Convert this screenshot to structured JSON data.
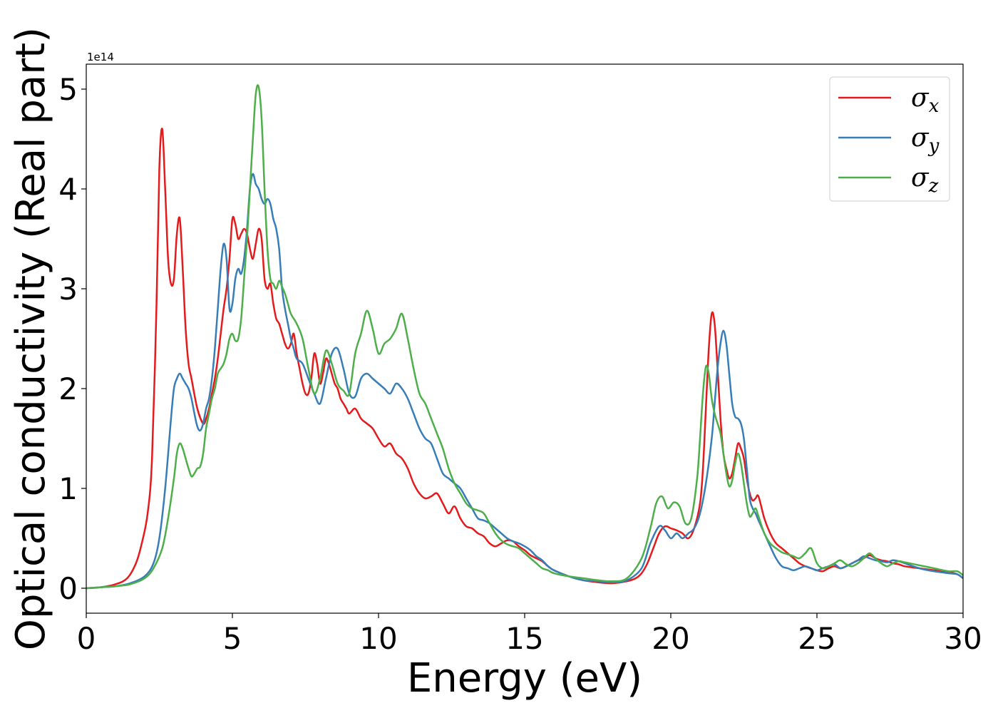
{
  "chart_data": {
    "type": "line",
    "title": "",
    "xlabel": "Energy (eV)",
    "ylabel": "Optical conductivity (Real part)",
    "y_offset_label": "1e14",
    "xlim": [
      0,
      30
    ],
    "ylim": [
      -0.25,
      5.25
    ],
    "x_ticks": [
      0,
      5,
      10,
      15,
      20,
      25,
      30
    ],
    "x_tick_labels": [
      "0",
      "5",
      "10",
      "15",
      "20",
      "25",
      "30"
    ],
    "y_ticks": [
      0,
      1,
      2,
      3,
      4,
      5
    ],
    "y_tick_labels": [
      "0",
      "1",
      "2",
      "3",
      "4",
      "5"
    ],
    "grid": false,
    "legend_position": "top-right",
    "series": [
      {
        "name": "σx",
        "symbol": "σ",
        "subscript": "x",
        "color": "#e41a1c",
        "x": [
          0,
          0.5,
          1,
          1.4,
          1.7,
          1.9,
          2.1,
          2.25,
          2.4,
          2.5,
          2.6,
          2.7,
          2.8,
          2.9,
          3.0,
          3.1,
          3.2,
          3.3,
          3.4,
          3.5,
          3.6,
          3.8,
          4.0,
          4.1,
          4.2,
          4.3,
          4.4,
          4.5,
          4.6,
          4.7,
          4.8,
          4.9,
          5.0,
          5.1,
          5.2,
          5.3,
          5.4,
          5.5,
          5.6,
          5.7,
          5.8,
          5.9,
          6.0,
          6.1,
          6.2,
          6.3,
          6.4,
          6.5,
          6.6,
          6.7,
          6.8,
          6.9,
          7.0,
          7.1,
          7.2,
          7.3,
          7.4,
          7.5,
          7.6,
          7.7,
          7.8,
          7.9,
          8.0,
          8.1,
          8.2,
          8.3,
          8.4,
          8.5,
          8.6,
          8.7,
          8.8,
          8.9,
          9.0,
          9.2,
          9.4,
          9.6,
          9.8,
          10.0,
          10.2,
          10.4,
          10.6,
          10.8,
          11.0,
          11.2,
          11.4,
          11.6,
          11.8,
          12.0,
          12.2,
          12.4,
          12.6,
          12.8,
          13.0,
          13.2,
          13.4,
          13.6,
          13.8,
          14.0,
          14.2,
          14.4,
          14.6,
          14.8,
          15.0,
          15.2,
          15.4,
          15.6,
          15.8,
          16.0,
          16.5,
          17.0,
          17.5,
          18.0,
          18.5,
          18.8,
          19.0,
          19.2,
          19.4,
          19.6,
          19.8,
          20.0,
          20.2,
          20.4,
          20.6,
          20.8,
          21.0,
          21.1,
          21.2,
          21.3,
          21.4,
          21.5,
          21.6,
          21.7,
          21.8,
          21.9,
          22.0,
          22.1,
          22.2,
          22.3,
          22.4,
          22.5,
          22.6,
          22.7,
          22.8,
          22.9,
          23.0,
          23.2,
          23.4,
          23.6,
          23.8,
          24.0,
          24.2,
          24.4,
          24.6,
          24.8,
          25.0,
          25.2,
          25.4,
          25.6,
          25.8,
          26.0,
          26.2,
          26.4,
          26.6,
          26.8,
          27.0,
          27.2,
          27.4,
          27.6,
          27.8,
          28.0,
          28.5,
          29.0,
          29.5,
          29.8,
          30
        ],
        "y": [
          0,
          0.01,
          0.04,
          0.1,
          0.25,
          0.45,
          0.75,
          1.3,
          2.8,
          4.2,
          4.6,
          4.0,
          3.3,
          3.05,
          3.1,
          3.55,
          3.7,
          3.2,
          2.6,
          2.25,
          2.1,
          1.8,
          1.65,
          1.7,
          1.8,
          1.95,
          2.1,
          2.3,
          2.55,
          2.8,
          3.0,
          3.3,
          3.7,
          3.65,
          3.5,
          3.55,
          3.6,
          3.55,
          3.4,
          3.3,
          3.45,
          3.6,
          3.5,
          3.1,
          3.0,
          3.05,
          2.85,
          2.7,
          2.65,
          2.55,
          2.45,
          2.4,
          2.45,
          2.55,
          2.35,
          2.2,
          2.05,
          1.95,
          1.95,
          2.1,
          2.35,
          2.25,
          2.05,
          2.15,
          2.3,
          2.25,
          2.15,
          2.05,
          2.0,
          1.9,
          1.85,
          1.8,
          1.75,
          1.8,
          1.7,
          1.65,
          1.6,
          1.5,
          1.42,
          1.45,
          1.35,
          1.3,
          1.2,
          1.05,
          0.95,
          0.9,
          0.92,
          0.95,
          0.85,
          0.75,
          0.82,
          0.7,
          0.62,
          0.6,
          0.55,
          0.52,
          0.45,
          0.42,
          0.45,
          0.48,
          0.47,
          0.42,
          0.38,
          0.33,
          0.3,
          0.27,
          0.22,
          0.18,
          0.12,
          0.08,
          0.06,
          0.05,
          0.07,
          0.1,
          0.15,
          0.25,
          0.4,
          0.55,
          0.62,
          0.6,
          0.58,
          0.55,
          0.5,
          0.6,
          0.85,
          1.2,
          1.8,
          2.4,
          2.75,
          2.65,
          2.2,
          1.7,
          1.35,
          1.2,
          1.1,
          1.15,
          1.3,
          1.45,
          1.4,
          1.3,
          1.1,
          0.95,
          0.88,
          0.9,
          0.92,
          0.7,
          0.55,
          0.45,
          0.4,
          0.35,
          0.3,
          0.25,
          0.22,
          0.2,
          0.18,
          0.17,
          0.2,
          0.22,
          0.2,
          0.22,
          0.25,
          0.28,
          0.3,
          0.33,
          0.3,
          0.28,
          0.27,
          0.25,
          0.24,
          0.22,
          0.2,
          0.18,
          0.16,
          0.14,
          0.1
        ]
      },
      {
        "name": "σy",
        "symbol": "σ",
        "subscript": "y",
        "color": "#377eb8",
        "x": [
          0,
          0.5,
          1,
          1.5,
          2.0,
          2.3,
          2.5,
          2.7,
          2.9,
          3.0,
          3.1,
          3.2,
          3.3,
          3.4,
          3.5,
          3.6,
          3.7,
          3.8,
          3.9,
          4.0,
          4.1,
          4.2,
          4.3,
          4.4,
          4.5,
          4.6,
          4.7,
          4.8,
          4.9,
          5.0,
          5.1,
          5.2,
          5.3,
          5.4,
          5.5,
          5.6,
          5.7,
          5.8,
          5.9,
          6.0,
          6.1,
          6.2,
          6.3,
          6.4,
          6.5,
          6.6,
          6.7,
          6.8,
          6.9,
          7.0,
          7.1,
          7.2,
          7.4,
          7.6,
          7.8,
          8.0,
          8.2,
          8.4,
          8.6,
          8.8,
          9.0,
          9.2,
          9.4,
          9.6,
          9.8,
          10.0,
          10.2,
          10.4,
          10.6,
          10.8,
          11.0,
          11.2,
          11.4,
          11.6,
          11.8,
          12.0,
          12.2,
          12.4,
          12.6,
          12.8,
          13.0,
          13.2,
          13.4,
          13.6,
          13.8,
          14.0,
          14.2,
          14.4,
          14.6,
          14.8,
          15.0,
          15.2,
          15.4,
          15.6,
          15.8,
          16.0,
          16.5,
          17.0,
          17.5,
          18.0,
          18.5,
          19.0,
          19.3,
          19.6,
          19.8,
          20.0,
          20.2,
          20.4,
          20.6,
          20.8,
          21.0,
          21.2,
          21.4,
          21.5,
          21.6,
          21.7,
          21.8,
          21.9,
          22.0,
          22.1,
          22.2,
          22.3,
          22.4,
          22.5,
          22.6,
          22.7,
          22.8,
          22.9,
          23.0,
          23.2,
          23.4,
          23.6,
          23.8,
          24.0,
          24.2,
          24.4,
          24.6,
          24.8,
          25.0,
          25.2,
          25.4,
          25.6,
          25.8,
          26.0,
          26.2,
          26.4,
          26.6,
          26.8,
          27.0,
          27.2,
          27.4,
          27.6,
          27.8,
          28.0,
          28.5,
          29.0,
          29.5,
          29.8,
          30
        ],
        "y": [
          0,
          0.01,
          0.02,
          0.05,
          0.12,
          0.25,
          0.5,
          1.0,
          1.7,
          2.0,
          2.1,
          2.15,
          2.1,
          2.05,
          2.0,
          1.9,
          1.75,
          1.62,
          1.58,
          1.65,
          1.8,
          1.9,
          2.1,
          2.4,
          2.8,
          3.2,
          3.45,
          3.3,
          2.8,
          2.85,
          3.1,
          3.2,
          3.15,
          3.3,
          3.6,
          4.0,
          4.15,
          4.05,
          4.0,
          3.9,
          3.85,
          3.9,
          3.85,
          3.7,
          3.6,
          3.4,
          3.0,
          2.8,
          2.65,
          2.5,
          2.4,
          2.3,
          2.25,
          2.1,
          1.95,
          1.85,
          2.1,
          2.35,
          2.4,
          2.2,
          1.95,
          1.92,
          2.1,
          2.15,
          2.1,
          2.05,
          2.0,
          1.95,
          2.05,
          2.0,
          1.9,
          1.75,
          1.6,
          1.5,
          1.45,
          1.3,
          1.15,
          1.1,
          1.05,
          1.0,
          0.9,
          0.8,
          0.7,
          0.68,
          0.65,
          0.6,
          0.55,
          0.5,
          0.47,
          0.45,
          0.42,
          0.38,
          0.32,
          0.28,
          0.22,
          0.18,
          0.12,
          0.08,
          0.07,
          0.06,
          0.08,
          0.2,
          0.45,
          0.62,
          0.58,
          0.5,
          0.55,
          0.5,
          0.55,
          0.6,
          0.75,
          1.05,
          1.5,
          1.85,
          2.2,
          2.45,
          2.58,
          2.45,
          2.15,
          1.85,
          1.72,
          1.7,
          1.65,
          1.5,
          1.2,
          0.9,
          0.8,
          0.75,
          0.68,
          0.55,
          0.42,
          0.3,
          0.22,
          0.2,
          0.18,
          0.2,
          0.22,
          0.2,
          0.18,
          0.2,
          0.22,
          0.24,
          0.2,
          0.22,
          0.25,
          0.28,
          0.32,
          0.3,
          0.28,
          0.27,
          0.26,
          0.28,
          0.27,
          0.25,
          0.2,
          0.17,
          0.15,
          0.14,
          0.1
        ]
      },
      {
        "name": "σz",
        "symbol": "σ",
        "subscript": "z",
        "color": "#4daf4a",
        "x": [
          0,
          0.5,
          1,
          1.5,
          2.0,
          2.3,
          2.6,
          2.8,
          3.0,
          3.1,
          3.2,
          3.3,
          3.4,
          3.5,
          3.6,
          3.7,
          3.8,
          3.9,
          4.0,
          4.1,
          4.2,
          4.3,
          4.4,
          4.5,
          4.6,
          4.7,
          4.8,
          4.9,
          5.0,
          5.1,
          5.2,
          5.3,
          5.4,
          5.5,
          5.6,
          5.7,
          5.8,
          5.9,
          6.0,
          6.1,
          6.2,
          6.3,
          6.4,
          6.5,
          6.6,
          6.7,
          6.8,
          6.9,
          7.0,
          7.2,
          7.4,
          7.6,
          7.8,
          8.0,
          8.2,
          8.4,
          8.6,
          8.8,
          9.0,
          9.2,
          9.4,
          9.6,
          9.8,
          10.0,
          10.2,
          10.4,
          10.6,
          10.8,
          11.0,
          11.2,
          11.4,
          11.6,
          11.8,
          12.0,
          12.2,
          12.4,
          12.6,
          12.8,
          13.0,
          13.2,
          13.4,
          13.6,
          13.8,
          14.0,
          14.2,
          14.4,
          14.6,
          14.8,
          15.0,
          15.2,
          15.4,
          15.6,
          15.8,
          16.0,
          16.5,
          17.0,
          17.5,
          18.0,
          18.5,
          19.0,
          19.3,
          19.5,
          19.7,
          19.9,
          20.1,
          20.3,
          20.5,
          20.7,
          20.9,
          21.0,
          21.1,
          21.2,
          21.3,
          21.4,
          21.5,
          21.6,
          21.7,
          21.8,
          21.9,
          22.0,
          22.1,
          22.2,
          22.3,
          22.4,
          22.5,
          22.6,
          22.7,
          22.8,
          22.9,
          23.0,
          23.2,
          23.4,
          23.6,
          23.8,
          24.0,
          24.2,
          24.4,
          24.6,
          24.8,
          25.0,
          25.2,
          25.4,
          25.6,
          25.8,
          26.0,
          26.2,
          26.4,
          26.6,
          26.8,
          27.0,
          27.2,
          27.4,
          27.6,
          27.8,
          28.0,
          28.5,
          29.0,
          29.5,
          29.8,
          30
        ],
        "y": [
          0,
          0.01,
          0.02,
          0.04,
          0.1,
          0.2,
          0.4,
          0.7,
          1.1,
          1.35,
          1.45,
          1.4,
          1.3,
          1.2,
          1.12,
          1.15,
          1.2,
          1.22,
          1.35,
          1.6,
          1.75,
          1.9,
          2.0,
          2.15,
          2.2,
          2.25,
          2.35,
          2.5,
          2.55,
          2.48,
          2.5,
          2.7,
          3.1,
          3.5,
          4.0,
          4.5,
          4.95,
          5.02,
          4.7,
          4.0,
          3.4,
          3.1,
          3.05,
          3.0,
          3.08,
          3.02,
          2.95,
          2.85,
          2.75,
          2.65,
          2.5,
          2.2,
          1.95,
          2.1,
          2.38,
          2.25,
          2.05,
          1.98,
          1.95,
          2.35,
          2.55,
          2.78,
          2.6,
          2.35,
          2.45,
          2.5,
          2.6,
          2.75,
          2.5,
          2.2,
          1.95,
          1.85,
          1.7,
          1.55,
          1.4,
          1.2,
          1.05,
          0.95,
          0.85,
          0.8,
          0.78,
          0.75,
          0.65,
          0.55,
          0.48,
          0.44,
          0.42,
          0.4,
          0.35,
          0.3,
          0.25,
          0.2,
          0.18,
          0.15,
          0.12,
          0.1,
          0.08,
          0.07,
          0.1,
          0.3,
          0.6,
          0.85,
          0.92,
          0.8,
          0.86,
          0.82,
          0.65,
          0.7,
          1.1,
          1.5,
          1.95,
          2.22,
          2.15,
          1.9,
          1.75,
          1.65,
          1.55,
          1.35,
          1.15,
          1.02,
          1.08,
          1.25,
          1.35,
          1.25,
          1.05,
          0.85,
          0.72,
          0.75,
          0.8,
          0.72,
          0.55,
          0.45,
          0.4,
          0.36,
          0.34,
          0.32,
          0.3,
          0.35,
          0.4,
          0.25,
          0.2,
          0.22,
          0.25,
          0.28,
          0.24,
          0.22,
          0.25,
          0.3,
          0.35,
          0.3,
          0.25,
          0.22,
          0.25,
          0.27,
          0.26,
          0.23,
          0.2,
          0.17,
          0.17,
          0.13
        ]
      }
    ]
  }
}
